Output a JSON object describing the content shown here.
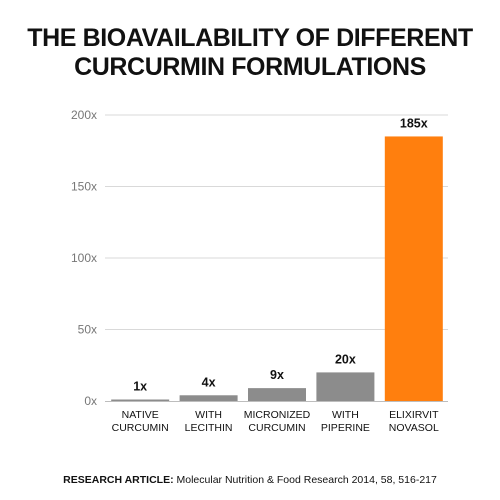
{
  "title_lines": [
    "THE BIOAVAILABILITY OF DIFFERENT",
    "CURCURMIN FORMULATIONS"
  ],
  "footer": {
    "label": "RESEARCH ARTICLE:",
    "text": "Molecular Nutrition & Food Research 2014, 58, 516-217"
  },
  "colors": {
    "bar_default": "#8c8c8c",
    "bar_highlight": "#ff7f0e",
    "grid": "#d9d9d9",
    "axis_text": "#777777",
    "label_text": "#111111"
  },
  "chart_data": {
    "type": "bar",
    "title": "THE BIOAVAILABILITY OF DIFFERENT CURCURMIN FORMULATIONS",
    "categories": [
      [
        "NATIVE",
        "CURCUMIN"
      ],
      [
        "WITH",
        "LECITHIN"
      ],
      [
        "MICRONIZED",
        "CURCUMIN"
      ],
      [
        "WITH",
        "PIPERINE"
      ],
      [
        "ELIXIRVIT",
        "NOVASOL"
      ]
    ],
    "values": [
      1,
      4,
      9,
      20,
      185
    ],
    "data_labels": [
      "1x",
      "4x",
      "9x",
      "20x",
      "185x"
    ],
    "highlight_index": 4,
    "ylim": [
      0,
      200
    ],
    "yticks": [
      0,
      50,
      100,
      150,
      200
    ],
    "ytick_labels": [
      "0x",
      "50x",
      "100x",
      "150x",
      "200x"
    ],
    "grid": true,
    "xlabel": "",
    "ylabel": ""
  }
}
